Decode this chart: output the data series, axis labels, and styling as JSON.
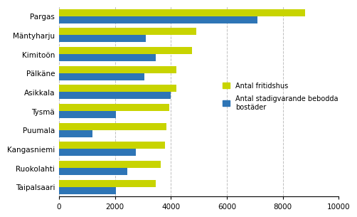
{
  "categories": [
    "Pargas",
    "Mäntyharju",
    "Kimitoön",
    "Pälkäne",
    "Asikkala",
    "Tysmä",
    "Puumala",
    "Kangasniemi",
    "Ruokolahti",
    "Taipalsaari"
  ],
  "fritidshus": [
    8800,
    4900,
    4750,
    4200,
    4200,
    3950,
    3850,
    3800,
    3650,
    3450
  ],
  "bostader": [
    7100,
    3100,
    3450,
    3050,
    4000,
    2050,
    1200,
    2750,
    2450,
    2050
  ],
  "color_fritidshus": "#c8d400",
  "color_bostader": "#2e75b6",
  "xlim": [
    0,
    10000
  ],
  "xticks": [
    0,
    2000,
    4000,
    6000,
    8000,
    10000
  ],
  "legend_fritidshus": "Antal fritidshus",
  "legend_bostader": "Antal stadigvarande bebodda\nbostäder",
  "bar_height": 0.38,
  "grid_color": "#c0c0c0",
  "background_color": "#ffffff"
}
